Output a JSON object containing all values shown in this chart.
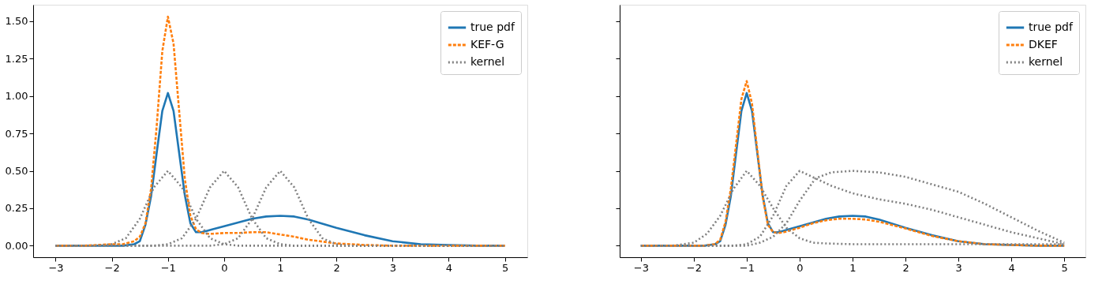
{
  "chart_data": [
    {
      "type": "line",
      "xlim": [
        -3.4,
        5.4
      ],
      "ylim": [
        -0.077,
        1.61
      ],
      "legend": "top right",
      "xticks": [
        {
          "value": -3,
          "label": "−3"
        },
        {
          "value": -2,
          "label": "−2"
        },
        {
          "value": -1,
          "label": "−1"
        },
        0,
        1,
        2,
        3,
        4,
        5
      ],
      "yticks": [
        {
          "value": 0,
          "label": "0.00"
        },
        {
          "value": 0.25,
          "label": "0.25"
        },
        {
          "value": 0.5,
          "label": "0.50"
        },
        {
          "value": 0.75,
          "label": "0.75"
        },
        {
          "value": 1,
          "label": "1.00"
        },
        {
          "value": 1.25,
          "label": "1.25"
        },
        {
          "value": 1.5,
          "label": "1.50"
        }
      ],
      "series": [
        {
          "name": "true pdf",
          "color": "#1f77b4",
          "line_style": "solid",
          "x": [
            -3,
            -2.5,
            -2,
            -1.8,
            -1.6,
            -1.5,
            -1.4,
            -1.3,
            -1.2,
            -1.1,
            -1,
            -0.9,
            -0.8,
            -0.7,
            -0.6,
            -0.5,
            -0.4,
            -0.3,
            -0.2,
            0,
            0.25,
            0.5,
            0.75,
            1,
            1.25,
            1.5,
            2,
            2.5,
            3,
            3.5,
            4,
            4.5,
            5
          ],
          "values": [
            0,
            0,
            0,
            0,
            0.01,
            0.03,
            0.14,
            0.33,
            0.62,
            0.9,
            1.02,
            0.9,
            0.62,
            0.34,
            0.15,
            0.09,
            0.09,
            0.1,
            0.11,
            0.13,
            0.155,
            0.18,
            0.195,
            0.2,
            0.195,
            0.175,
            0.12,
            0.07,
            0.03,
            0.01,
            0.005,
            0,
            0
          ]
        },
        {
          "name": "KEF-G",
          "color": "#ff7f0e",
          "line_style": "dashed",
          "x": [
            -3,
            -2.5,
            -2,
            -1.8,
            -1.6,
            -1.5,
            -1.4,
            -1.3,
            -1.2,
            -1.1,
            -1,
            -0.9,
            -0.8,
            -0.7,
            -0.6,
            -0.5,
            -0.4,
            -0.3,
            -0.2,
            0,
            0.25,
            0.5,
            0.75,
            1,
            1.25,
            1.5,
            2,
            2.5,
            3,
            3.5,
            4,
            4.5,
            5
          ],
          "values": [
            0,
            0,
            0.01,
            0.01,
            0.03,
            0.06,
            0.15,
            0.38,
            0.8,
            1.3,
            1.53,
            1.35,
            0.9,
            0.45,
            0.2,
            0.11,
            0.085,
            0.08,
            0.08,
            0.085,
            0.085,
            0.09,
            0.09,
            0.075,
            0.06,
            0.04,
            0.015,
            0.005,
            0,
            0,
            0,
            0,
            0
          ]
        },
        {
          "name": "kernel",
          "color": "#808080",
          "line_style": "dotted",
          "x": [
            -3,
            -2.25,
            -2,
            -1.75,
            -1.5,
            -1.25,
            -1,
            -0.75,
            -0.5,
            -0.25,
            0,
            0.25,
            5
          ],
          "values": [
            0,
            0,
            0.01,
            0.05,
            0.18,
            0.39,
            0.5,
            0.39,
            0.18,
            0.05,
            0.01,
            0,
            0
          ]
        },
        {
          "color": "#808080",
          "line_style": "dotted",
          "x": [
            -3,
            -1.25,
            -1,
            -0.75,
            -0.5,
            -0.25,
            0,
            0.25,
            0.5,
            0.75,
            1,
            1.25,
            5
          ],
          "values": [
            0,
            0,
            0.01,
            0.05,
            0.18,
            0.39,
            0.5,
            0.39,
            0.18,
            0.05,
            0.01,
            0,
            0
          ]
        },
        {
          "color": "#808080",
          "line_style": "dotted",
          "x": [
            -3,
            -0.25,
            0,
            0.25,
            0.5,
            0.75,
            1,
            1.25,
            1.5,
            1.75,
            2,
            2.25,
            5
          ],
          "values": [
            0,
            0,
            0.01,
            0.05,
            0.18,
            0.39,
            0.5,
            0.39,
            0.18,
            0.05,
            0.01,
            0,
            0
          ]
        }
      ]
    },
    {
      "type": "line",
      "xlim": [
        -3.4,
        5.4
      ],
      "ylim": [
        -0.077,
        1.61
      ],
      "legend": "top right",
      "tick_labels": "x",
      "xticks": [
        {
          "value": -3,
          "label": "−3"
        },
        {
          "value": -2,
          "label": "−2"
        },
        {
          "value": -1,
          "label": "−1"
        },
        0,
        1,
        2,
        3,
        4,
        5
      ],
      "yticks": [
        {
          "value": 0,
          "label": null
        },
        {
          "value": 0.25,
          "label": null
        },
        {
          "value": 0.5,
          "label": null
        },
        {
          "value": 0.75,
          "label": null
        },
        {
          "value": 1,
          "label": null
        },
        {
          "value": 1.25,
          "label": null
        },
        {
          "value": 1.5,
          "label": null
        }
      ],
      "series": [
        {
          "name": "true pdf",
          "color": "#1f77b4",
          "line_style": "solid",
          "x": [
            -3,
            -2.5,
            -2,
            -1.8,
            -1.6,
            -1.5,
            -1.4,
            -1.3,
            -1.2,
            -1.1,
            -1,
            -0.9,
            -0.8,
            -0.7,
            -0.6,
            -0.5,
            -0.4,
            -0.3,
            -0.2,
            0,
            0.25,
            0.5,
            0.75,
            1,
            1.25,
            1.5,
            2,
            2.5,
            3,
            3.5,
            4,
            4.5,
            5
          ],
          "values": [
            0,
            0,
            0,
            0,
            0.01,
            0.03,
            0.14,
            0.33,
            0.62,
            0.9,
            1.02,
            0.9,
            0.62,
            0.34,
            0.15,
            0.09,
            0.09,
            0.1,
            0.11,
            0.13,
            0.155,
            0.18,
            0.195,
            0.2,
            0.195,
            0.175,
            0.12,
            0.07,
            0.03,
            0.01,
            0.005,
            0,
            0
          ]
        },
        {
          "name": "DKEF",
          "color": "#ff7f0e",
          "line_style": "dashed",
          "x": [
            -3,
            -2.5,
            -2,
            -1.8,
            -1.6,
            -1.5,
            -1.4,
            -1.3,
            -1.2,
            -1.1,
            -1,
            -0.9,
            -0.8,
            -0.7,
            -0.6,
            -0.5,
            -0.4,
            -0.3,
            -0.2,
            0,
            0.25,
            0.5,
            0.75,
            1,
            1.25,
            1.5,
            2,
            2.5,
            3,
            3.5,
            4,
            4.5,
            5
          ],
          "values": [
            0,
            0,
            0,
            0,
            0.01,
            0.04,
            0.16,
            0.38,
            0.68,
            0.98,
            1.1,
            0.95,
            0.64,
            0.33,
            0.14,
            0.09,
            0.085,
            0.09,
            0.1,
            0.12,
            0.15,
            0.17,
            0.18,
            0.18,
            0.175,
            0.16,
            0.115,
            0.065,
            0.03,
            0.01,
            0.005,
            0,
            0
          ]
        },
        {
          "name": "kernel",
          "color": "#808080",
          "line_style": "dotted",
          "x": [
            -3,
            -2.4,
            -2,
            -1.75,
            -1.5,
            -1.25,
            -1,
            -0.75,
            -0.5,
            -0.25,
            0,
            0.25,
            0.5,
            1,
            5
          ],
          "values": [
            0,
            0,
            0.02,
            0.08,
            0.2,
            0.38,
            0.5,
            0.4,
            0.25,
            0.12,
            0.05,
            0.02,
            0.015,
            0.01,
            0.01
          ]
        },
        {
          "color": "#808080",
          "line_style": "dotted",
          "x": [
            -3,
            -1.25,
            -1,
            -0.75,
            -0.5,
            -0.25,
            0,
            0.3,
            0.6,
            1,
            1.5,
            2,
            2.5,
            3,
            3.5,
            4,
            4.5,
            5
          ],
          "values": [
            0,
            0,
            0.01,
            0.06,
            0.2,
            0.4,
            0.5,
            0.45,
            0.4,
            0.35,
            0.31,
            0.28,
            0.24,
            0.19,
            0.14,
            0.09,
            0.05,
            0.01
          ]
        },
        {
          "color": "#808080",
          "line_style": "dotted",
          "x": [
            -3,
            -1,
            -0.75,
            -0.5,
            -0.25,
            0,
            0.3,
            0.6,
            1,
            1.5,
            2,
            2.5,
            3,
            3.5,
            4,
            4.5,
            5
          ],
          "values": [
            0,
            0,
            0.02,
            0.06,
            0.15,
            0.3,
            0.45,
            0.49,
            0.5,
            0.49,
            0.46,
            0.41,
            0.36,
            0.28,
            0.19,
            0.1,
            0.02
          ]
        }
      ]
    }
  ]
}
